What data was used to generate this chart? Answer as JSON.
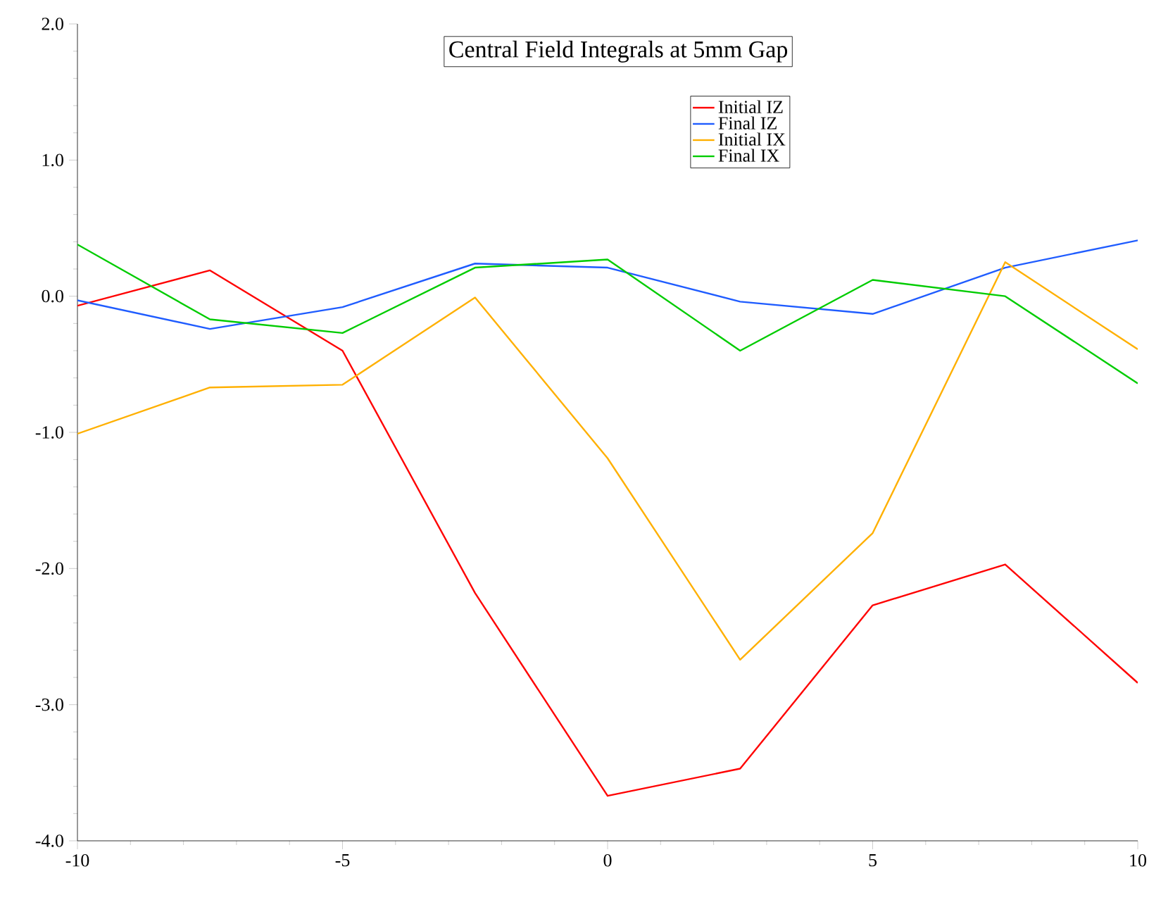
{
  "chart_data": {
    "type": "line",
    "title": "Central Field Integrals at 5mm Gap",
    "x": [
      -10,
      -7.5,
      -5,
      -2.5,
      0,
      2.5,
      5,
      7.5,
      10
    ],
    "series": [
      {
        "name": "Initial IZ",
        "color": "#ff0000",
        "values": [
          -0.07,
          0.19,
          -0.4,
          -2.18,
          -3.67,
          -3.47,
          -2.27,
          -1.97,
          -2.84
        ]
      },
      {
        "name": "Final IZ",
        "color": "#1f5cff",
        "values": [
          -0.03,
          -0.24,
          -0.08,
          0.24,
          0.21,
          -0.04,
          -0.13,
          0.21,
          0.41
        ]
      },
      {
        "name": "Initial IX",
        "color": "#ffb000",
        "values": [
          -1.01,
          -0.67,
          -0.65,
          -0.01,
          -1.19,
          -2.67,
          -1.74,
          0.25,
          -0.39
        ]
      },
      {
        "name": "Final IX",
        "color": "#00cc00",
        "values": [
          0.38,
          -0.17,
          -0.27,
          0.21,
          0.27,
          -0.4,
          0.12,
          0.0,
          -0.64
        ]
      }
    ],
    "xlim": [
      -10,
      10
    ],
    "xticks": [
      -10,
      -5,
      0,
      5,
      10
    ],
    "ylim": [
      -4,
      2
    ],
    "yticks": [
      {
        "value": -4,
        "label": "-4.0"
      },
      {
        "value": -3,
        "label": "-3.0"
      },
      {
        "value": -2,
        "label": "-2.0"
      },
      {
        "value": -1,
        "label": "-1.0"
      },
      {
        "value": 0,
        "label": "0.0"
      },
      {
        "value": 1,
        "label": "1.0"
      },
      {
        "value": 2,
        "label": "2.0"
      }
    ],
    "grid": false,
    "legend": "top right",
    "marker": "none",
    "line_style": "solid"
  }
}
